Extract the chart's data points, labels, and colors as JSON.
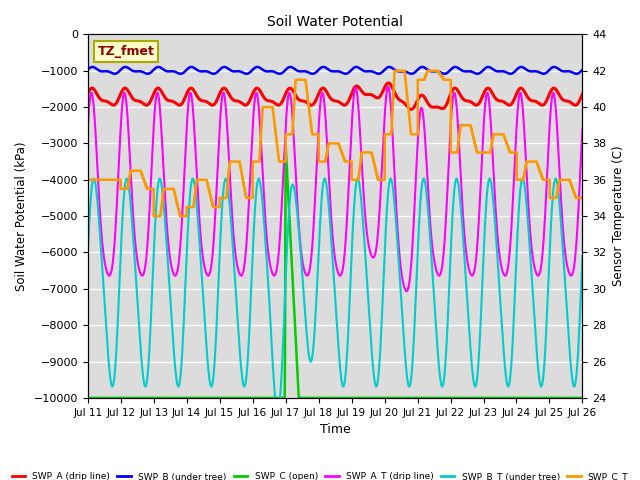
{
  "title": "Soil Water Potential",
  "ylabel_left": "Soil Water Potential (kPa)",
  "ylabel_right": "Sensor Temperature (C)",
  "xlabel": "Time",
  "ylim_left": [
    -10000,
    0
  ],
  "ylim_right": [
    24,
    44
  ],
  "yticks_left": [
    0,
    -1000,
    -2000,
    -3000,
    -4000,
    -5000,
    -6000,
    -7000,
    -8000,
    -9000,
    -10000
  ],
  "yticks_right": [
    24,
    26,
    28,
    30,
    32,
    34,
    36,
    38,
    40,
    42,
    44
  ],
  "xtick_labels": [
    "Jul 11",
    "Jul 12",
    "Jul 13",
    "Jul 14",
    "Jul 15",
    "Jul 16",
    "Jul 17",
    "Jul 18",
    "Jul 19",
    "Jul 20",
    "Jul 21",
    "Jul 22",
    "Jul 23",
    "Jul 24",
    "Jul 25",
    "Jul 26"
  ],
  "bg_color": "#dcdcdc",
  "annotation_text": "TZ_fmet",
  "annotation_color": "#8b0000",
  "annotation_bg": "#ffffcc",
  "annotation_border": "#aaaa00",
  "series": {
    "SWP_A": {
      "color": "#ff0000",
      "label": "SWP_A (drip line)",
      "lw": 2.2
    },
    "SWP_B": {
      "color": "#0000ff",
      "label": "SWP_B (under tree)",
      "lw": 1.8
    },
    "SWP_C": {
      "color": "#00cc00",
      "label": "SWP_C (open)",
      "lw": 1.8
    },
    "SWP_A_T": {
      "color": "#ff00ff",
      "label": "SWP_A_T (drip line)",
      "lw": 1.5
    },
    "SWP_B_T": {
      "color": "#00cccc",
      "label": "SWP_B_T (under tree)",
      "lw": 1.5
    },
    "SWP_C_T": {
      "color": "#ff9900",
      "label": "SWP_C_T",
      "lw": 1.8
    }
  },
  "figsize": [
    6.4,
    4.8
  ],
  "dpi": 100
}
